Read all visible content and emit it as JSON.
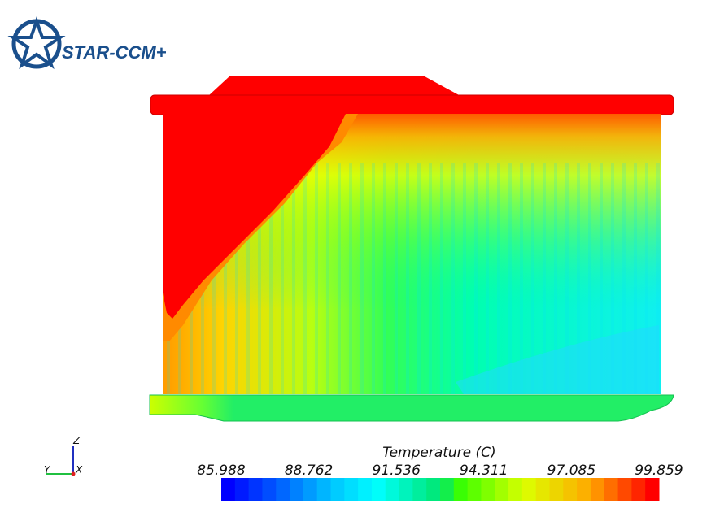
{
  "logo": {
    "text": "STAR-CCM+"
  },
  "triad": {
    "z": "Z",
    "y": "Y",
    "x": "X"
  },
  "legend": {
    "title": "Temperature (C)",
    "ticks": [
      "85.988",
      "88.762",
      "91.536",
      "94.311",
      "97.085",
      "99.859"
    ]
  }
}
